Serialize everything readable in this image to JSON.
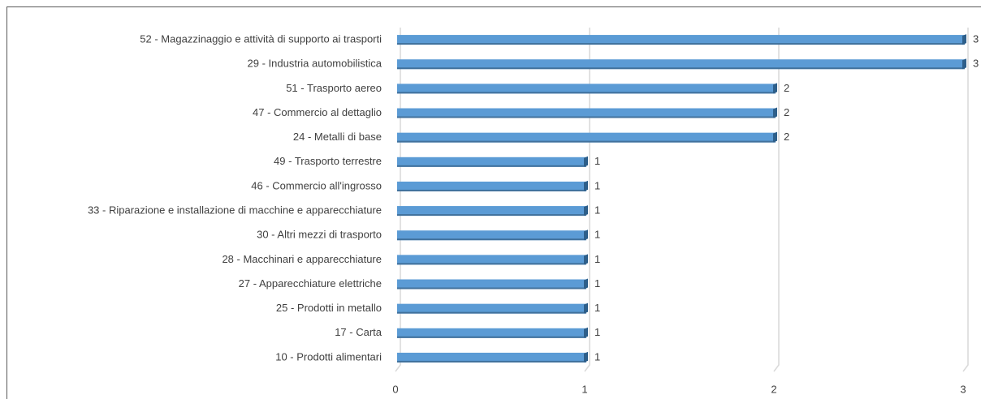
{
  "chart_data": {
    "type": "bar",
    "orientation": "horizontal",
    "categories": [
      "52 - Magazzinaggio e attività di supporto ai trasporti",
      "29 - Industria automobilistica",
      "51 - Trasporto aereo",
      "47 - Commercio al dettaglio",
      "24 - Metalli di base",
      "49 - Trasporto terrestre",
      "46 - Commercio all'ingrosso",
      "33 - Riparazione e installazione di macchine e apparecchiature",
      "30 - Altri mezzi di trasporto",
      "28 - Macchinari e apparecchiature",
      "27 - Apparecchiature elettriche",
      "25 - Prodotti in metallo",
      "17 - Carta",
      "10 - Prodotti alimentari"
    ],
    "values": [
      3,
      3,
      2,
      2,
      2,
      1,
      1,
      1,
      1,
      1,
      1,
      1,
      1,
      1
    ],
    "color": "#5b9bd5",
    "xlim": [
      0,
      3
    ],
    "xticks": [
      0,
      1,
      2,
      3
    ],
    "grid": true
  }
}
